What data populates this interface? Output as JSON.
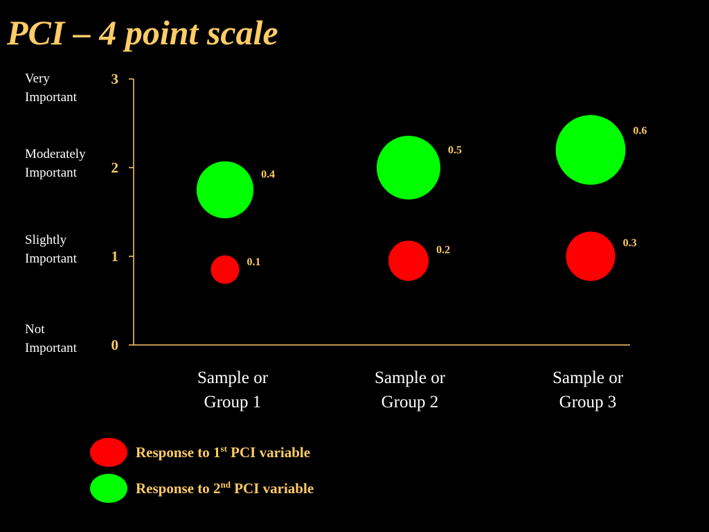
{
  "title": "PCI – 4 point scale",
  "colors": {
    "title": "#FFCC66",
    "axis": "#FFCC66",
    "text": "#FFFFFF",
    "red": "#FF0000",
    "green": "#00FF00"
  },
  "scale_labels": [
    {
      "line1": "Very",
      "line2": "Important"
    },
    {
      "line1": "Moderately",
      "line2": "Important"
    },
    {
      "line1": "Slightly",
      "line2": "Important"
    },
    {
      "line1": "Not",
      "line2": "Important"
    }
  ],
  "legend": [
    {
      "pre": "Response to 1",
      "sup": "st",
      "post": " PCI variable",
      "color": "#FF0000"
    },
    {
      "pre": "Response to 2",
      "sup": "nd",
      "post": " PCI variable",
      "color": "#00FF00"
    }
  ],
  "chart_data": {
    "type": "bubble",
    "categories": [
      {
        "line1": "Sample or",
        "line2": "Group 1"
      },
      {
        "line1": "Sample or",
        "line2": "Group 2"
      },
      {
        "line1": "Sample or",
        "line2": "Group 3"
      }
    ],
    "y_ticks": [
      "0",
      "1",
      "2",
      "3"
    ],
    "ylim": [
      0,
      3
    ],
    "grid": false,
    "legend_position": "bottom-left",
    "series": [
      {
        "color": "#FF0000",
        "points": [
          {
            "category": 0,
            "y": 0.85,
            "size": 0.1,
            "label": "0.1"
          },
          {
            "category": 1,
            "y": 0.95,
            "size": 0.2,
            "label": "0.2"
          },
          {
            "category": 2,
            "y": 1.0,
            "size": 0.3,
            "label": "0.3"
          }
        ]
      },
      {
        "color": "#00FF00",
        "points": [
          {
            "category": 0,
            "y": 1.75,
            "size": 0.4,
            "label": "0.4"
          },
          {
            "category": 1,
            "y": 2.0,
            "size": 0.5,
            "label": "0.5"
          },
          {
            "category": 2,
            "y": 2.2,
            "size": 0.6,
            "label": "0.6"
          }
        ]
      }
    ]
  }
}
